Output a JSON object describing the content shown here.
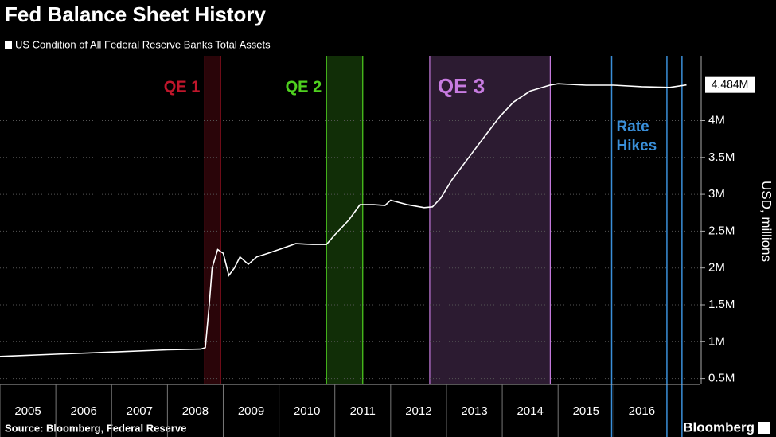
{
  "chart_data": {
    "type": "line",
    "title": "Fed Balance Sheet History",
    "y_label": "USD, millions",
    "source": "Source: Bloomberg, Federal Reserve",
    "brand": "Bloomberg",
    "x": [
      2005.0,
      2006.0,
      2007.0,
      2008.0,
      2008.6,
      2008.68,
      2008.75,
      2008.8,
      2008.9,
      2009.0,
      2009.1,
      2009.2,
      2009.3,
      2009.45,
      2009.6,
      2009.8,
      2010.0,
      2010.3,
      2010.6,
      2010.85,
      2011.0,
      2011.25,
      2011.45,
      2011.7,
      2011.9,
      2012.0,
      2012.3,
      2012.6,
      2012.75,
      2012.9,
      2013.1,
      2013.4,
      2013.7,
      2013.95,
      2014.2,
      2014.5,
      2014.85,
      2015.0,
      2015.5,
      2016.0,
      2016.5,
      2017.0,
      2017.3
    ],
    "series": [
      {
        "name": "US Condition of All Federal Reserve Banks Total Assets",
        "color": "#ffffff",
        "values": [
          800000,
          830000,
          860000,
          890000,
          900000,
          920000,
          1500000,
          2000000,
          2250000,
          2200000,
          1900000,
          2000000,
          2150000,
          2050000,
          2150000,
          2200000,
          2250000,
          2330000,
          2320000,
          2320000,
          2450000,
          2650000,
          2860000,
          2860000,
          2850000,
          2920000,
          2860000,
          2820000,
          2830000,
          2950000,
          3200000,
          3500000,
          3800000,
          4050000,
          4250000,
          4400000,
          4480000,
          4500000,
          4480000,
          4480000,
          4460000,
          4450000,
          4484000
        ],
        "value_labels": [
          null,
          null,
          null,
          null,
          null,
          null,
          null,
          null,
          null,
          null,
          null,
          null,
          null,
          null,
          null,
          null,
          null,
          null,
          null,
          null,
          null,
          null,
          null,
          null,
          null,
          null,
          null,
          null,
          null,
          null,
          null,
          null,
          null,
          null,
          null,
          null,
          null,
          null,
          null,
          null,
          null,
          null,
          "4.484M"
        ]
      }
    ],
    "xlim": [
      2005,
      2017.55
    ],
    "xticks": [
      2005,
      2006,
      2007,
      2008,
      2009,
      2010,
      2011,
      2012,
      2013,
      2014,
      2015,
      2016
    ],
    "ylim": [
      420000,
      4880000
    ],
    "yticks": [
      {
        "value": 500000,
        "label": "0.5M"
      },
      {
        "value": 1000000,
        "label": "1M"
      },
      {
        "value": 1500000,
        "label": "1.5M"
      },
      {
        "value": 2000000,
        "label": "2M"
      },
      {
        "value": 2500000,
        "label": "2.5M"
      },
      {
        "value": 3000000,
        "label": "3M"
      },
      {
        "value": 3500000,
        "label": "3.5M"
      },
      {
        "value": 4000000,
        "label": "4M"
      }
    ],
    "grid": true,
    "shaded_regions": [
      {
        "label": "QE 1",
        "start": 2008.67,
        "end": 2008.95,
        "color": "#c0162b"
      },
      {
        "label": "QE 2",
        "start": 2010.85,
        "end": 2011.5,
        "color": "#4fd11f"
      },
      {
        "label": "QE 3",
        "start": 2012.7,
        "end": 2014.86,
        "color": "#c77be0"
      }
    ],
    "vlines": {
      "label": "Rate Hikes",
      "x": [
        2015.96,
        2016.95,
        2017.22
      ],
      "color": "#3a8fd9"
    }
  }
}
